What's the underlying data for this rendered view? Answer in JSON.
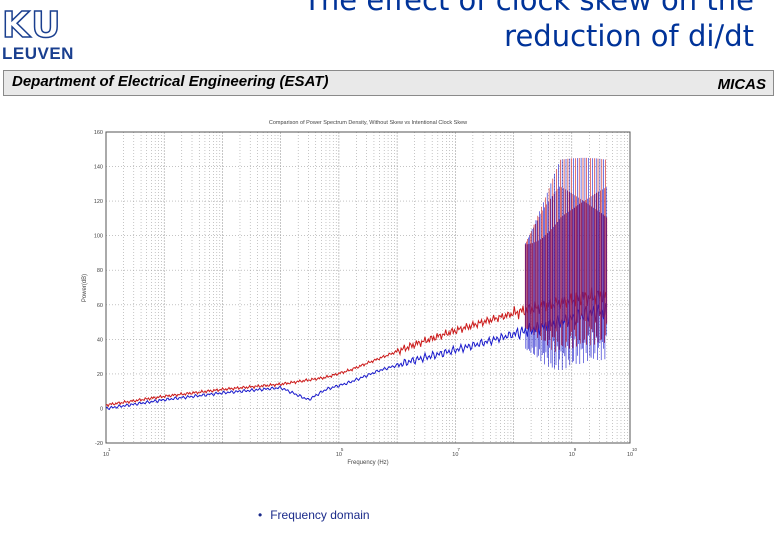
{
  "logo": {
    "mark": "KU",
    "city": "LEUVEN"
  },
  "header": {
    "title_line1": "The effect of clock skew on the",
    "title_line2": "reduction of di/dt",
    "department": "Department of Electrical Engineering (ESAT)",
    "group": "MICAS"
  },
  "bullet": {
    "text": "Frequency domain"
  },
  "chart_data": {
    "type": "line",
    "title": "Comparison of Power Spectrum Density, Without Skew vs Intentional Clock Skew",
    "xlabel": "Frequency (Hz)",
    "ylabel": "Power(dB)",
    "x_scale": "log",
    "xlim": [
      10,
      10000000000
    ],
    "ylim": [
      -20,
      160
    ],
    "grid": true,
    "y_ticks": [
      -20,
      0,
      20,
      40,
      60,
      80,
      100,
      120,
      140,
      160
    ],
    "x_ticks": [
      10,
      100000,
      10000000,
      1000000000,
      10000000000
    ],
    "x_tick_bases": [
      "10",
      "10",
      "10",
      "10",
      "10"
    ],
    "x_tick_exps": [
      "1",
      "5",
      "7",
      "9",
      "10"
    ],
    "colors": {
      "red": "#cc1a1a",
      "blue": "#1a1acc",
      "grid": "#a0a0a0"
    },
    "series": [
      {
        "color": "#cc1a1a",
        "x": [
          10,
          100,
          1000,
          10000,
          60000,
          150000,
          500000,
          2000000,
          8000000,
          30000000,
          100000000,
          300000000,
          800000000,
          1500000000,
          3000000000,
          4000000000
        ],
        "y": [
          2,
          7,
          11,
          14,
          18,
          22,
          29,
          37,
          44,
          50,
          55,
          59,
          62,
          64,
          65,
          65
        ]
      },
      {
        "color": "#1a1acc",
        "x": [
          10,
          100,
          1000,
          10000,
          30000,
          60000,
          150000,
          500000,
          2000000,
          8000000,
          30000000,
          100000000,
          300000000,
          800000000,
          1500000000,
          3000000000,
          4000000000
        ],
        "y": [
          0,
          5,
          9,
          12,
          5,
          11,
          15,
          22,
          28,
          33,
          38,
          43,
          47,
          51,
          54,
          56,
          56
        ]
      }
    ]
  }
}
